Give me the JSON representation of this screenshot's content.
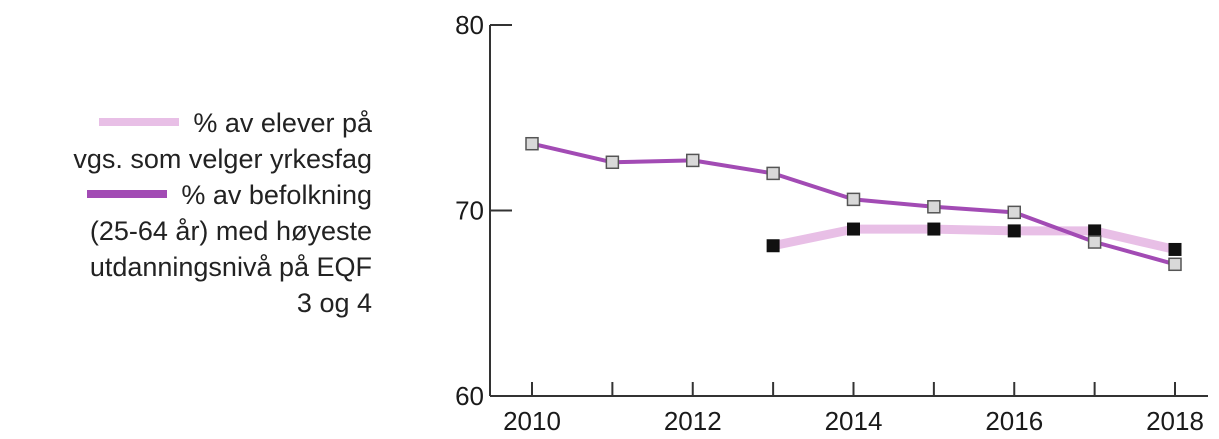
{
  "chart_data": {
    "type": "line",
    "title": "",
    "xlabel": "",
    "ylabel": "",
    "xlim": [
      2009.5,
      2018.6
    ],
    "ylim": [
      60,
      80
    ],
    "x_ticks": [
      "2010",
      "2012",
      "2014",
      "2016",
      "2018"
    ],
    "y_ticks": [
      "60",
      "70",
      "80"
    ],
    "grid": false,
    "legend_position": "left",
    "series": [
      {
        "name_lines": [
          "% av elever på",
          "vgs. som velger yrkesfag"
        ],
        "color": "#e8bfe6",
        "marker": "filled-black-square",
        "x": [
          2013,
          2014,
          2015,
          2016,
          2017,
          2018
        ],
        "y": [
          68.1,
          69.0,
          69.0,
          68.9,
          68.9,
          67.9
        ]
      },
      {
        "name_lines": [
          "% av befolkning",
          "(25-64 år) med høyeste",
          "utdanningsnivå på EQF",
          "3 og 4"
        ],
        "color": "#a24bb4",
        "marker": "open-gray-square",
        "x": [
          2010,
          2011,
          2012,
          2013,
          2014,
          2015,
          2016,
          2017,
          2018
        ],
        "y": [
          73.6,
          72.6,
          72.7,
          72.0,
          70.6,
          70.2,
          69.9,
          68.3,
          67.1
        ]
      }
    ]
  }
}
